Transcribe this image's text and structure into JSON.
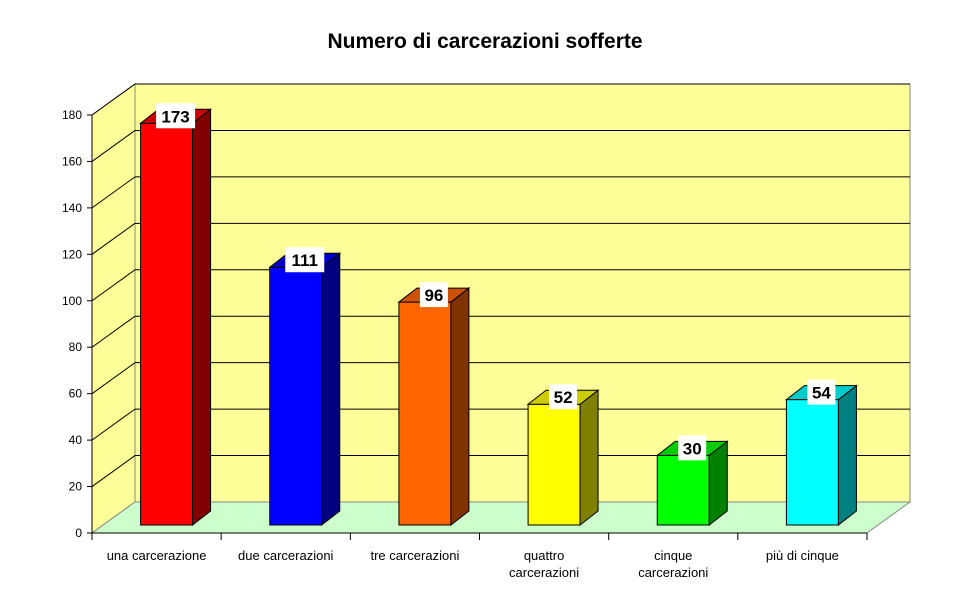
{
  "chart_data": {
    "type": "bar",
    "title": "Numero di carcerazioni sofferte",
    "categories": [
      "una carcerazione",
      "due carcerazioni",
      "tre carcerazioni",
      "quattro carcerazioni",
      "cinque carcerazioni",
      "più di cinque"
    ],
    "category_lines": [
      [
        "una carcerazione"
      ],
      [
        "due carcerazioni"
      ],
      [
        "tre carcerazioni"
      ],
      [
        "quattro",
        "carcerazioni"
      ],
      [
        "cinque",
        "carcerazioni"
      ],
      [
        "più di cinque"
      ]
    ],
    "values": [
      173,
      111,
      96,
      52,
      30,
      54
    ],
    "data_labels": [
      "173",
      "111",
      "96",
      "52",
      "30",
      "54"
    ],
    "colors": [
      "#ff0000",
      "#0000ff",
      "#ff6600",
      "#ffff00",
      "#00ff00",
      "#00ffff"
    ],
    "side_colors": [
      "#800000",
      "#000080",
      "#803300",
      "#808000",
      "#008000",
      "#008080"
    ],
    "top_colors": [
      "#cc0000",
      "#0000cc",
      "#cc5200",
      "#cccc00",
      "#00cc00",
      "#00cccc"
    ],
    "ylim": [
      0,
      180
    ],
    "yticks": [
      0,
      20,
      40,
      60,
      80,
      100,
      120,
      140,
      160,
      180
    ],
    "grid": true,
    "style": "3d",
    "wall_color": "#ffff99",
    "floor_color": "#ccffcc",
    "xlabel": "",
    "ylabel": ""
  }
}
